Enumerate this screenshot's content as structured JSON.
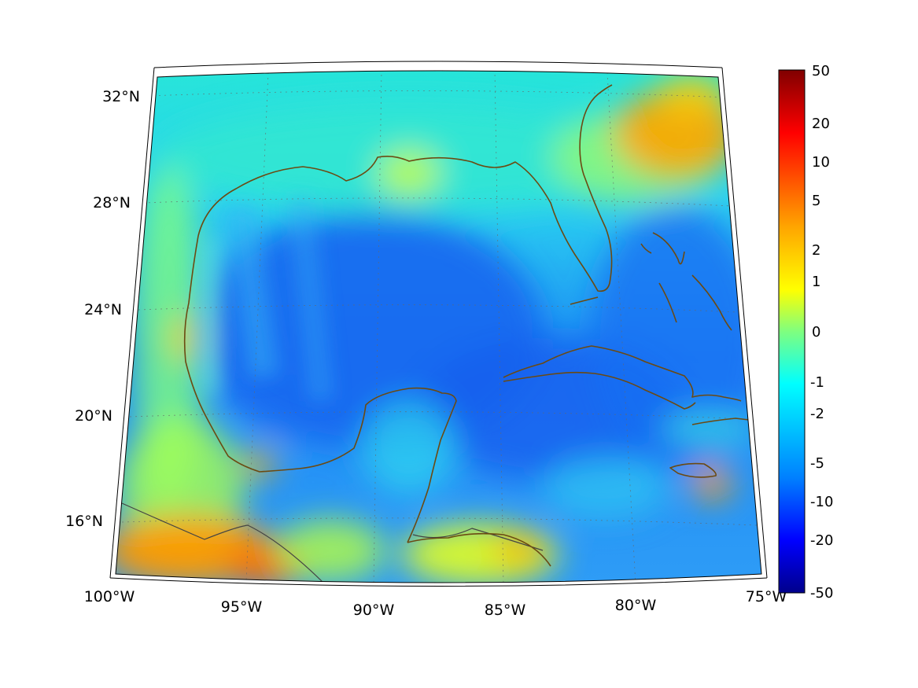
{
  "map": {
    "lon_labels": [
      "100°W",
      "95°W",
      "90°W",
      "85°W",
      "80°W",
      "75°W"
    ],
    "lat_labels": [
      "32°N",
      "28°N",
      "24°N",
      "20°N",
      "16°N"
    ],
    "extent": {
      "lon_min": -100,
      "lon_max": -75,
      "lat_min": 14.5,
      "lat_max": 33
    }
  },
  "colorbar": {
    "colormap": "jet",
    "tick_labels": [
      "50",
      "20",
      "10",
      "5",
      "2",
      "1",
      "0",
      "-1",
      "-2",
      "-5",
      "-10",
      "-20",
      "-50"
    ],
    "range": [
      -50,
      50
    ],
    "top_color": "#800000",
    "bottom_color": "#00008b"
  },
  "colors": {
    "coastline": "#6b4a12",
    "dominant_field": "#1f7fff",
    "warm_patch": "#f7b400"
  }
}
